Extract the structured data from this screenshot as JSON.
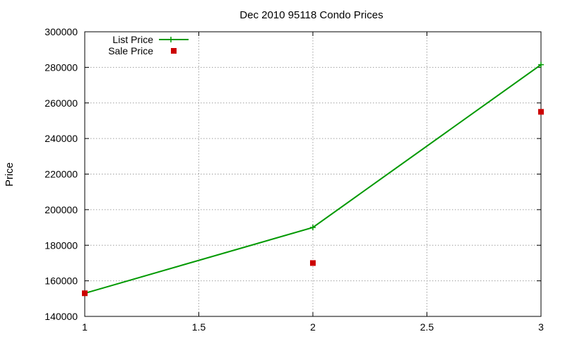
{
  "chart_data": {
    "type": "line",
    "title": "Dec 2010 95118 Condo Prices",
    "xlabel": "",
    "ylabel": "Price",
    "xlim": [
      1,
      3
    ],
    "ylim": [
      140000,
      300000
    ],
    "xticks": [
      "1",
      "1.5",
      "2",
      "2.5",
      "3"
    ],
    "yticks": [
      "140000",
      "160000",
      "180000",
      "200000",
      "220000",
      "240000",
      "260000",
      "280000",
      "300000"
    ],
    "grid": true,
    "legend_position": "top-left",
    "series": [
      {
        "name": "List Price",
        "style": "line+cross",
        "color": "#009900",
        "x": [
          1,
          2,
          3
        ],
        "y": [
          153000,
          190000,
          281500
        ]
      },
      {
        "name": "Sale Price",
        "style": "square-markers",
        "color": "#cc0000",
        "x": [
          1,
          2,
          3
        ],
        "y": [
          153000,
          170000,
          255000
        ]
      }
    ]
  }
}
